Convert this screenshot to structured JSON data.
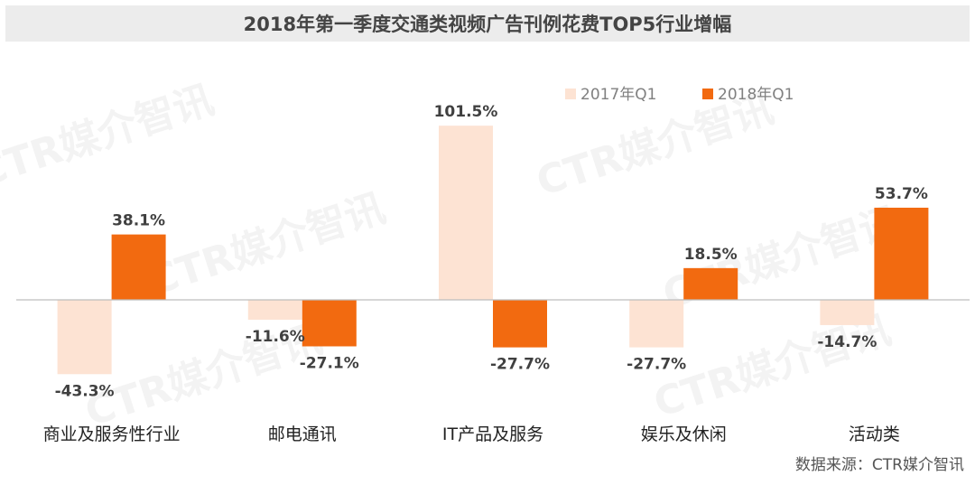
{
  "chart_data": {
    "type": "bar",
    "title": "2018年第一季度交通类视频广告刊例花费TOP5行业增幅",
    "categories": [
      "商业及服务性行业",
      "邮电通讯",
      "IT产品及服务",
      "娱乐及休闲",
      "活动类"
    ],
    "series": [
      {
        "name": "2017年Q1",
        "values": [
          -43.3,
          -11.6,
          101.5,
          -27.7,
          -14.7
        ],
        "labels": [
          "-43.3%",
          "-11.6%",
          "101.5%",
          "-27.7%",
          "-14.7%"
        ],
        "color": "#fde3d3"
      },
      {
        "name": "2018年Q1",
        "values": [
          38.1,
          -27.1,
          -27.7,
          18.5,
          53.7
        ],
        "labels": [
          "38.1%",
          "-27.1%",
          "-27.7%",
          "18.5%",
          "53.7%"
        ],
        "color": "#f26a10"
      }
    ],
    "unit": "%",
    "grid": false,
    "legend": "top-right"
  },
  "source": "数据来源：CTR媒介智讯",
  "watermark": "CTR媒介智讯",
  "colors": {
    "title_bg": "#ececec",
    "axis": "#bdbdbd"
  }
}
